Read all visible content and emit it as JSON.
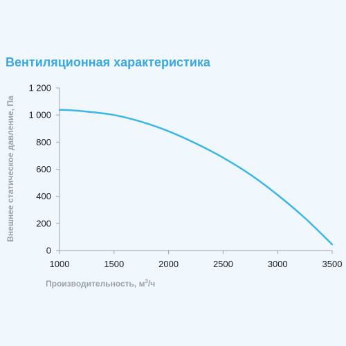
{
  "chart_data": {
    "type": "line",
    "title": "Вентиляционная характеристика",
    "xlabel_main": "Производительность, м",
    "xlabel_sup": "3",
    "xlabel_tail": "/ч",
    "ylabel": "Внешнее статическое давление, Па",
    "xlim": [
      1000,
      3500
    ],
    "ylim": [
      0,
      1200
    ],
    "x_ticks": [
      1000,
      1500,
      2000,
      2500,
      3000,
      3500
    ],
    "x_tick_labels": [
      "1000",
      "1500",
      "2000",
      "2500",
      "3000",
      "3500"
    ],
    "y_ticks": [
      0,
      200,
      400,
      600,
      800,
      1000,
      1200
    ],
    "y_tick_labels": [
      "0",
      "200",
      "400",
      "600",
      "800",
      "1 000",
      "1 200"
    ],
    "grid": false,
    "line_color": "#3db4e8",
    "series": [
      {
        "x": [
          1000,
          1100,
          1250,
          1500,
          1750,
          2000,
          2250,
          2500,
          2750,
          3000,
          3250,
          3500
        ],
        "values": [
          1038,
          1035,
          1025,
          1000,
          950,
          880,
          790,
          685,
          560,
          410,
          240,
          45
        ]
      }
    ]
  }
}
